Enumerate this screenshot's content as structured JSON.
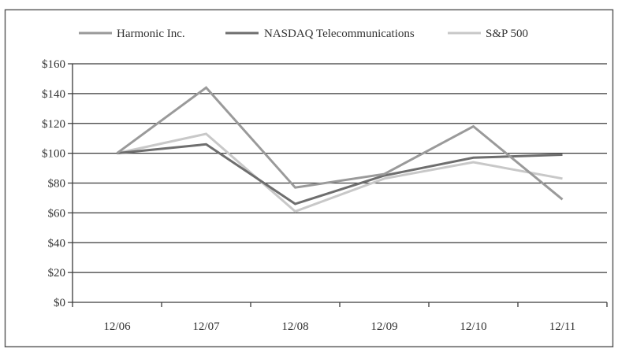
{
  "chart_data": {
    "type": "line",
    "title": "",
    "xlabel": "",
    "ylabel": "",
    "categories": [
      "12/06",
      "12/07",
      "12/08",
      "12/09",
      "12/10",
      "12/11"
    ],
    "ylim": [
      0,
      160
    ],
    "y_ticks": [
      0,
      20,
      40,
      60,
      80,
      100,
      120,
      140,
      160
    ],
    "y_tick_labels": [
      "$0",
      "$20",
      "$40",
      "$60",
      "$80",
      "$100",
      "$120",
      "$140",
      "$160"
    ],
    "grid": "horizontal",
    "legend_position": "top",
    "series": [
      {
        "name": "Harmonic Inc.",
        "color": "#9a9a9a",
        "values": [
          100,
          144,
          77,
          86,
          118,
          69
        ]
      },
      {
        "name": "NASDAQ Telecommunications",
        "color": "#6e6e6e",
        "values": [
          100,
          106,
          66,
          85,
          97,
          99
        ]
      },
      {
        "name": "S&P 500",
        "color": "#c8c8c8",
        "values": [
          100,
          113,
          61,
          83,
          94,
          83
        ]
      }
    ]
  }
}
